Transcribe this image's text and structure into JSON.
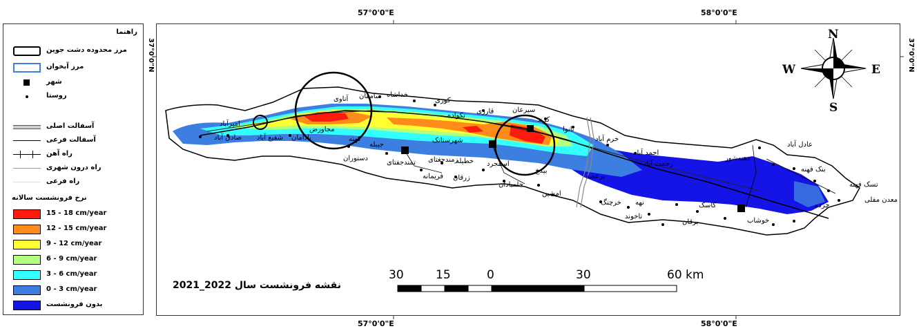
{
  "legend": {
    "title": "راهنما",
    "items": [
      {
        "label": "مرز محدوده دشت جوین",
        "symbol": "boundary-box"
      },
      {
        "label": "مرز آبخوان",
        "symbol": "aquifer-box"
      },
      {
        "label": "شهر",
        "symbol": "city-square"
      },
      {
        "label": "روستا",
        "symbol": "village-dot"
      },
      {
        "label": "آسفالت اصلی",
        "symbol": "double-line"
      },
      {
        "label": "آسفالت فرعی",
        "symbol": "single-line"
      },
      {
        "label": "راه آهن",
        "symbol": "railway-line"
      },
      {
        "label": "راه درون شهری",
        "symbol": "thin-line"
      },
      {
        "label": "راه فرعی",
        "symbol": "faint-line"
      }
    ],
    "rate_title": "نرخ فرونشست سالانه",
    "rates": [
      {
        "label": "15 - 18 cm/year",
        "color": "#ff1a0d"
      },
      {
        "label": "12 - 15 cm/year",
        "color": "#ff8c1a"
      },
      {
        "label": "9 - 12  cm/year",
        "color": "#ffff33"
      },
      {
        "label": "6 - 9  cm/year",
        "color": "#b3ff80"
      },
      {
        "label": "3 - 6  cm/year",
        "color": "#33ffff"
      },
      {
        "label": "0 - 3  cm/year",
        "color": "#3d7fe0"
      },
      {
        "label": "بدون فرونشست",
        "color": "#1414e6"
      }
    ]
  },
  "coords": {
    "top_left": "57°0'0\"E",
    "top_right": "58°0'0\"E",
    "bottom_left": "57°0'0\"E",
    "bottom_right": "58°0'0\"E",
    "left_side": "37°0'0\"N",
    "right_side": "37°0'0\"N"
  },
  "map_title": "2021_2022  نقشه فرونشست سال",
  "scale_bar": {
    "labels": [
      "30",
      "15",
      "0",
      "30",
      "60 km"
    ]
  },
  "north_arrow": {
    "n": "N",
    "s": "S",
    "e": "E",
    "w": "W"
  },
  "places": {
    "p01": "امیرآباد",
    "p02": "صادق آباد",
    "p03": "شفیع آباد",
    "p04": "بادامان",
    "p05": "مجاورض",
    "p06": "کهنه",
    "p07": "جیبله",
    "p08": "دستوران",
    "p09": "تمندجفتای",
    "p10": "زمندجغتای",
    "p11": "فریمانه",
    "p12": "زرقان",
    "p13": "خطیله",
    "p14": "شهرستانک",
    "p15": "آناوی",
    "p16": "سامقان",
    "p17": "خداشاه",
    "p18": "کوری",
    "p19": "تکواده",
    "p20": "قارزی",
    "p21": "سیرعان",
    "p22": "کرند",
    "p23": "نانوا",
    "p24": "خرم آباد",
    "p25": "احمد آباد",
    "p26": "رحمت آباد",
    "p27": "برعصه",
    "p28": "بیدخ",
    "p29": "جلمبادان",
    "p30": "اسفجرد",
    "p31": "امشین",
    "p32": "خرچنگ",
    "p33": "نهه",
    "p34": "کاسک",
    "p35": "برقان",
    "p36": "تاخوند",
    "p37": "خوشاب",
    "p38": "عادل آباد",
    "p39": "دهنه‌شور",
    "p40": "بنک فهنه",
    "p41": "تسک فهنه",
    "p42": "معدن مفلی",
    "p43": "چزده"
  }
}
